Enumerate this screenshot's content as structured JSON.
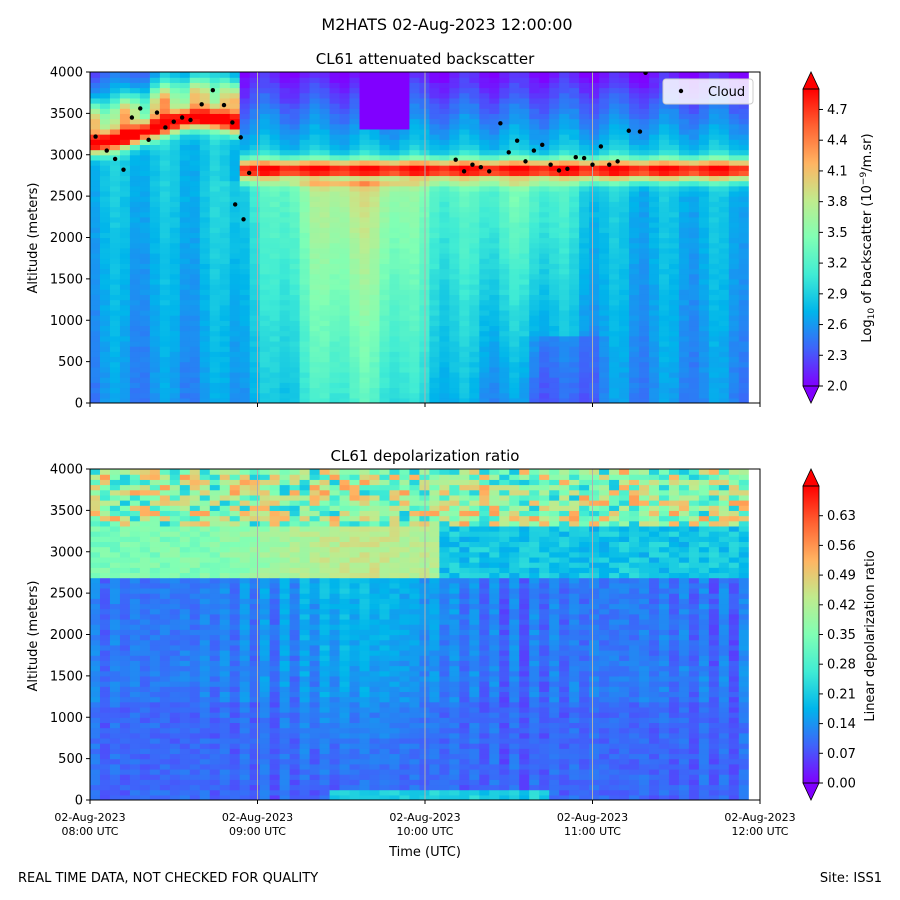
{
  "suptitle": "M2HATS 02-Aug-2023 12:00:00",
  "footer_left": "REAL TIME DATA, NOT CHECKED FOR QUALITY",
  "footer_right": "Site: ISS1",
  "chart_data": [
    {
      "type": "heatmap",
      "title": "CL61 attenuated backscatter",
      "ylabel": "Altitude (meters)",
      "ylim": [
        0,
        4000
      ],
      "yticks": [
        "0",
        "500",
        "1000",
        "1500",
        "2000",
        "2500",
        "3000",
        "3500",
        "4000"
      ],
      "xlim": [
        "08:00",
        "12:00"
      ],
      "grid": "vertical lines at hourly ticks",
      "colormap": "rainbow",
      "colorbar": {
        "label_prefix": "Log",
        "label_sub": "10",
        "label_mid": " of backscatter (10",
        "label_sup": "−9",
        "label_end": "/m.sr)",
        "range": [
          2.0,
          4.9
        ],
        "ticks": [
          "2.0",
          "2.3",
          "2.6",
          "2.9",
          "3.2",
          "3.5",
          "3.8",
          "4.1",
          "4.4",
          "4.7"
        ],
        "extend": "both"
      },
      "legend": {
        "entries": [
          "Cloud"
        ],
        "placement": "top-right"
      },
      "cloud_series": {
        "name": "Cloud",
        "points": [
          [
            "08:02",
            3220
          ],
          [
            "08:06",
            3050
          ],
          [
            "08:09",
            2950
          ],
          [
            "08:12",
            2820
          ],
          [
            "08:15",
            3450
          ],
          [
            "08:18",
            3560
          ],
          [
            "08:21",
            3180
          ],
          [
            "08:24",
            3510
          ],
          [
            "08:27",
            3330
          ],
          [
            "08:30",
            3400
          ],
          [
            "08:33",
            3450
          ],
          [
            "08:36",
            3420
          ],
          [
            "08:40",
            3610
          ],
          [
            "08:44",
            3780
          ],
          [
            "08:48",
            3600
          ],
          [
            "08:51",
            3390
          ],
          [
            "08:54",
            3210
          ],
          [
            "08:57",
            2780
          ],
          [
            "08:52",
            2400
          ],
          [
            "08:55",
            2220
          ],
          [
            "10:11",
            2940
          ],
          [
            "10:14",
            2800
          ],
          [
            "10:17",
            2880
          ],
          [
            "10:20",
            2850
          ],
          [
            "10:23",
            2800
          ],
          [
            "10:27",
            3380
          ],
          [
            "10:30",
            3030
          ],
          [
            "10:33",
            3170
          ],
          [
            "10:36",
            2920
          ],
          [
            "10:39",
            3050
          ],
          [
            "10:42",
            3120
          ],
          [
            "10:45",
            2880
          ],
          [
            "10:48",
            2810
          ],
          [
            "10:51",
            2830
          ],
          [
            "10:54",
            2970
          ],
          [
            "10:57",
            2960
          ],
          [
            "11:00",
            2880
          ],
          [
            "11:03",
            3100
          ],
          [
            "11:06",
            2880
          ],
          [
            "11:09",
            2920
          ],
          [
            "11:13",
            3290
          ],
          [
            "11:17",
            3280
          ],
          [
            "11:19",
            3990
          ]
        ]
      }
    },
    {
      "type": "heatmap",
      "title": "CL61 depolarization ratio",
      "ylabel": "Altitude (meters)",
      "xlabel": "Time (UTC)",
      "ylim": [
        0,
        4000
      ],
      "yticks": [
        "0",
        "500",
        "1000",
        "1500",
        "2000",
        "2500",
        "3000",
        "3500",
        "4000"
      ],
      "xticks": [
        {
          "date": "02-Aug-2023",
          "time": "08:00 UTC"
        },
        {
          "date": "02-Aug-2023",
          "time": "09:00 UTC"
        },
        {
          "date": "02-Aug-2023",
          "time": "10:00 UTC"
        },
        {
          "date": "02-Aug-2023",
          "time": "11:00 UTC"
        },
        {
          "date": "02-Aug-2023",
          "time": "12:00 UTC"
        }
      ],
      "grid": "vertical lines at hourly ticks",
      "colormap": "rainbow",
      "colorbar": {
        "label": "Linear depolarization ratio",
        "range": [
          0.0,
          0.7
        ],
        "ticks": [
          "0.00",
          "0.07",
          "0.14",
          "0.21",
          "0.28",
          "0.35",
          "0.42",
          "0.49",
          "0.56",
          "0.63"
        ],
        "extend": "both"
      }
    }
  ],
  "colors": {
    "cmap_stops": [
      "#8000ff",
      "#4062fa",
      "#00b5eb",
      "#40ecd4",
      "#80ffb4",
      "#c0eb8d",
      "#ffb462",
      "#ff6232",
      "#ff0000"
    ],
    "cloud_marker": "#000000",
    "grid_line": "#b0b0b0",
    "no_data": "#ffffff"
  }
}
